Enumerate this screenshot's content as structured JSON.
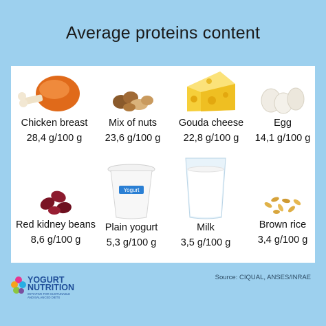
{
  "title": "Average proteins content",
  "items": [
    {
      "name": "Chicken breast",
      "value": "28,4 g/100 g",
      "icon": "chicken-leg-icon"
    },
    {
      "name": "Mix of nuts",
      "value": "23,6 g/100 g",
      "icon": "nuts-icon"
    },
    {
      "name": "Gouda cheese",
      "value": "22,8 g/100 g",
      "icon": "cheese-icon"
    },
    {
      "name": "Egg",
      "value": "14,1 g/100 g",
      "icon": "eggs-icon"
    },
    {
      "name": "Red kidney beans",
      "value": "8,6 g/100 g",
      "icon": "beans-icon"
    },
    {
      "name": "Plain yogurt",
      "value": "5,3 g/100 g",
      "icon": "yogurt-cup-icon",
      "label": "Yogurt"
    },
    {
      "name": "Milk",
      "value": "3,5 g/100 g",
      "icon": "milk-glass-icon"
    },
    {
      "name": "Brown rice",
      "value": "3,4 g/100 g",
      "icon": "rice-icon"
    }
  ],
  "source": "Source: CIQUAL, ANSES/INRAE",
  "logo": {
    "line1": "YOGURT",
    "line2": "NUTRITION",
    "tagline": "INITIATIVE FOR SUSTAINABLE AND BALANCED DIETS"
  },
  "colors": {
    "background": "#9dd0ee",
    "panel": "#ffffff",
    "logo_blue": "#1f4e99"
  }
}
